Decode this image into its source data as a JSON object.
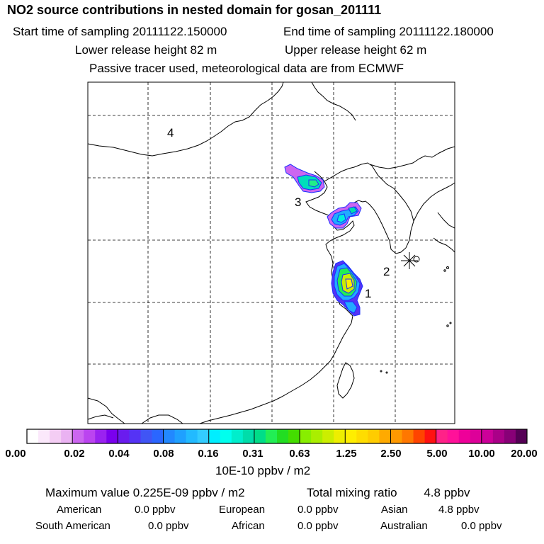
{
  "header": {
    "title": "NO2 source contributions in nested domain for gosan_201111",
    "start_label": "Start time of sampling 20111122.150000",
    "end_label": "End time of sampling 20111122.180000",
    "lower_label": "Lower release height   82 m",
    "upper_label": "Upper release height   62 m",
    "tracer_note": "Passive tracer used, meteorological data are from ECMWF"
  },
  "map": {
    "region_labels": [
      "1",
      "2",
      "3",
      "4"
    ],
    "receptor_symbol": "station-star"
  },
  "colorbar": {
    "tick_labels": [
      "0.00",
      "0.02",
      "0.04",
      "0.08",
      "0.16",
      "0.31",
      "0.63",
      "1.25",
      "2.50",
      "5.00",
      "10.00",
      "20.00"
    ],
    "unit_label": "10E-10 ppbv / m2",
    "colors": [
      "#ffffff",
      "#fbe8fb",
      "#f4cdf4",
      "#eab2f2",
      "#cc66f0",
      "#bb44f0",
      "#9a22f0",
      "#7a00ee",
      "#6a1cee",
      "#5533f5",
      "#4055f5",
      "#2a66ff",
      "#2288ff",
      "#1fa0ff",
      "#22baff",
      "#33ccff",
      "#00eeff",
      "#00ffee",
      "#00eecc",
      "#00ddaa",
      "#00dd88",
      "#22ee55",
      "#22dd22",
      "#44dd00",
      "#88ee00",
      "#aaee00",
      "#ccee00",
      "#eeee00",
      "#ffee00",
      "#ffdd00",
      "#ffcc00",
      "#ffaa00",
      "#ff9900",
      "#ff7700",
      "#ff4400",
      "#ff1111",
      "#ff2288",
      "#ff1199",
      "#ee0099",
      "#dd0099",
      "#cc0099",
      "#aa0088",
      "#880077",
      "#550055"
    ]
  },
  "footer": {
    "max_line": "Maximum value  0.225E-09 ppbv / m2",
    "total_line": "Total mixing ratio        4.8 ppbv",
    "rows": [
      [
        {
          "name": "American",
          "value": "0.0 ppbv"
        },
        {
          "name": "European",
          "value": "0.0 ppbv"
        },
        {
          "name": "Asian",
          "value": "4.8 ppbv"
        }
      ],
      [
        {
          "name": "South American",
          "value": "0.0 ppbv"
        },
        {
          "name": "African",
          "value": "0.0 ppbv"
        },
        {
          "name": "Australian",
          "value": "0.0 ppbv"
        }
      ]
    ]
  }
}
